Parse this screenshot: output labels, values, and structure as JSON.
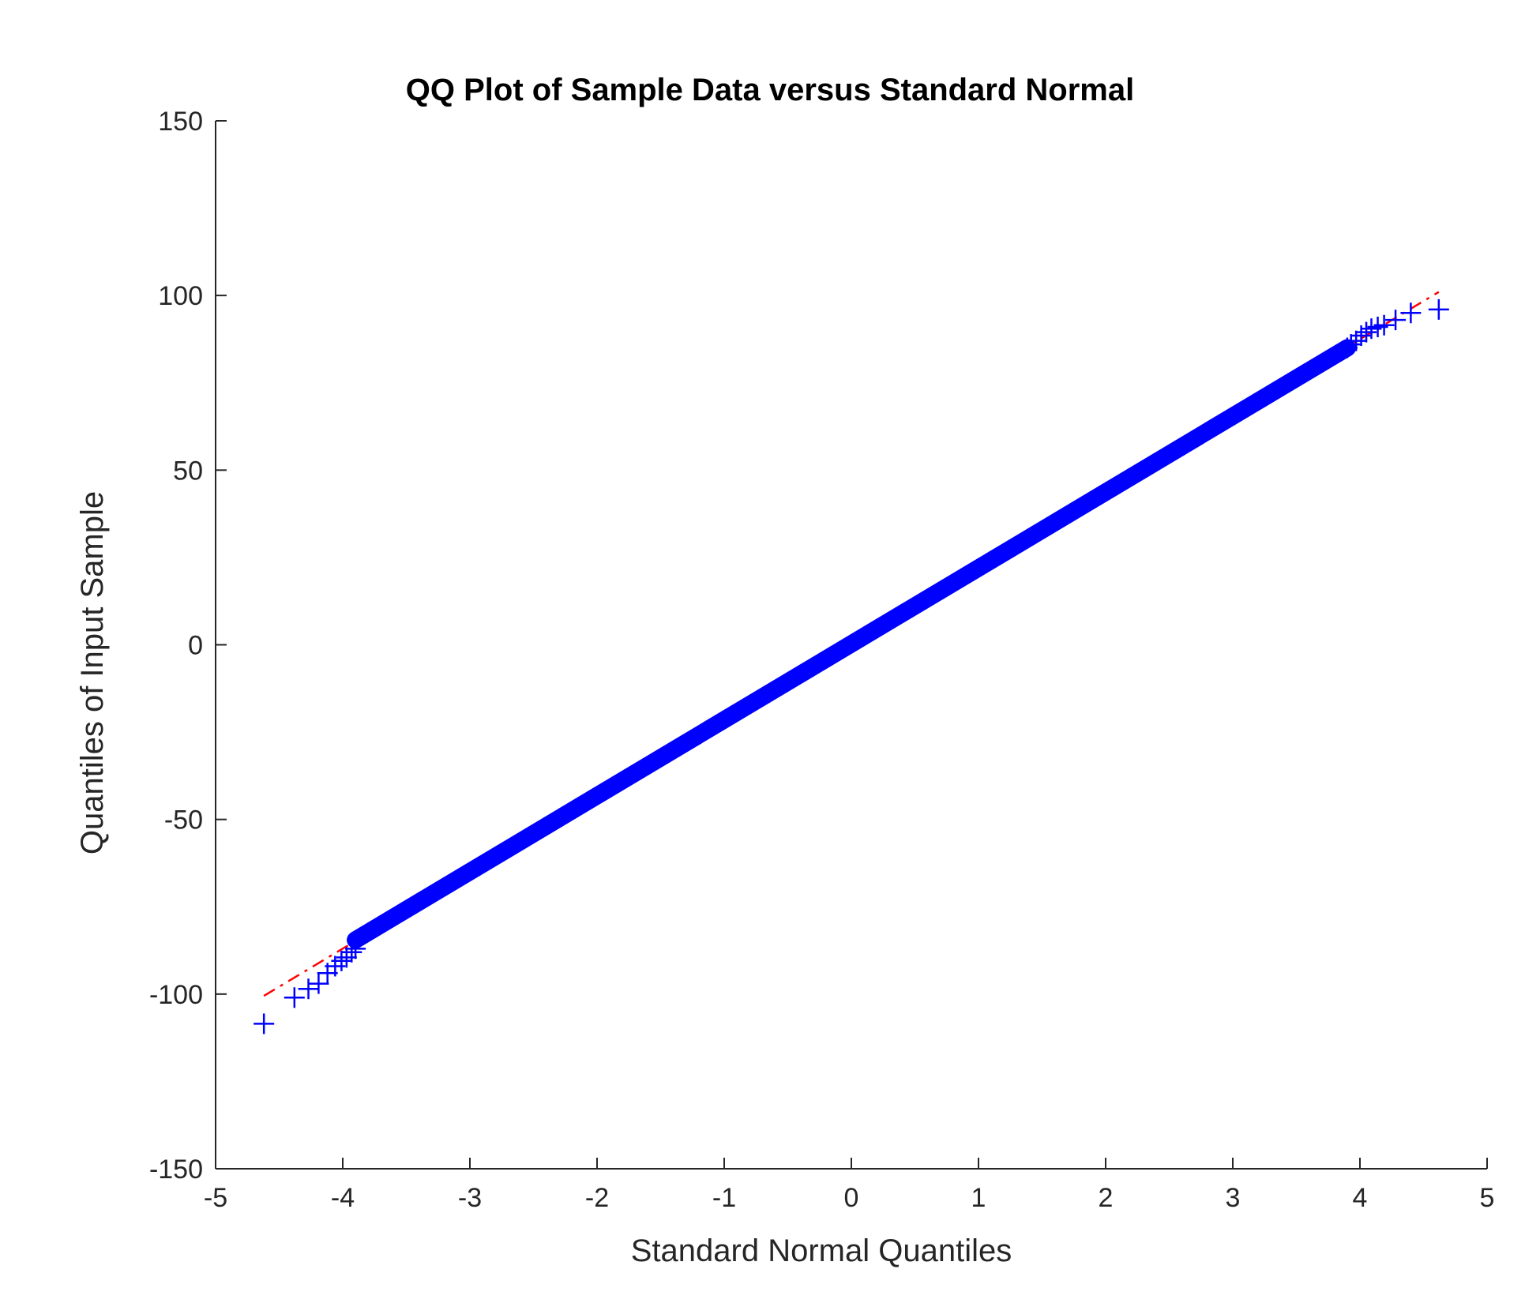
{
  "chart_data": {
    "type": "scatter",
    "title": "QQ Plot of Sample Data versus Standard Normal",
    "xlabel": "Standard Normal Quantiles",
    "ylabel": "Quantiles of Input Sample",
    "xlim": [
      -5,
      5
    ],
    "ylim": [
      -150,
      150
    ],
    "xticks": [
      -5,
      -4,
      -3,
      -2,
      -1,
      0,
      1,
      2,
      3,
      4,
      5
    ],
    "yticks": [
      -150,
      -100,
      -50,
      0,
      50,
      100,
      150
    ],
    "grid": false,
    "marker": "+",
    "colors": {
      "points": "#0000ff",
      "reference_line": "#ff0000",
      "axes": "#262626"
    },
    "reference_line": {
      "style": "dash-dot",
      "x": [
        -4.62,
        4.62
      ],
      "y": [
        -100.5,
        101.0
      ]
    },
    "continuous_band": {
      "description_x_range": [
        -3.9,
        3.9
      ],
      "x_start": -3.9,
      "x_end": 3.9,
      "y_start": -84.5,
      "y_end": 85.0
    },
    "series": [
      {
        "points": [
          [
            -4.62,
            -108.5
          ],
          [
            -4.38,
            -101.0
          ],
          [
            -4.27,
            -98.5
          ],
          [
            -4.19,
            -97.0
          ],
          [
            -4.12,
            -94.0
          ],
          [
            -4.06,
            -92.0
          ],
          [
            -4.01,
            -90.5
          ],
          [
            -3.97,
            -89.5
          ],
          [
            -3.93,
            -88.0
          ],
          [
            -3.9,
            -87.0
          ],
          [
            3.9,
            85.0
          ],
          [
            3.93,
            86.0
          ],
          [
            3.97,
            87.0
          ],
          [
            4.01,
            88.5
          ],
          [
            4.05,
            89.5
          ],
          [
            4.09,
            90.5
          ],
          [
            4.14,
            91.0
          ],
          [
            4.19,
            91.5
          ],
          [
            4.28,
            93.0
          ],
          [
            4.4,
            95.0
          ],
          [
            4.62,
            96.0
          ]
        ]
      }
    ]
  }
}
